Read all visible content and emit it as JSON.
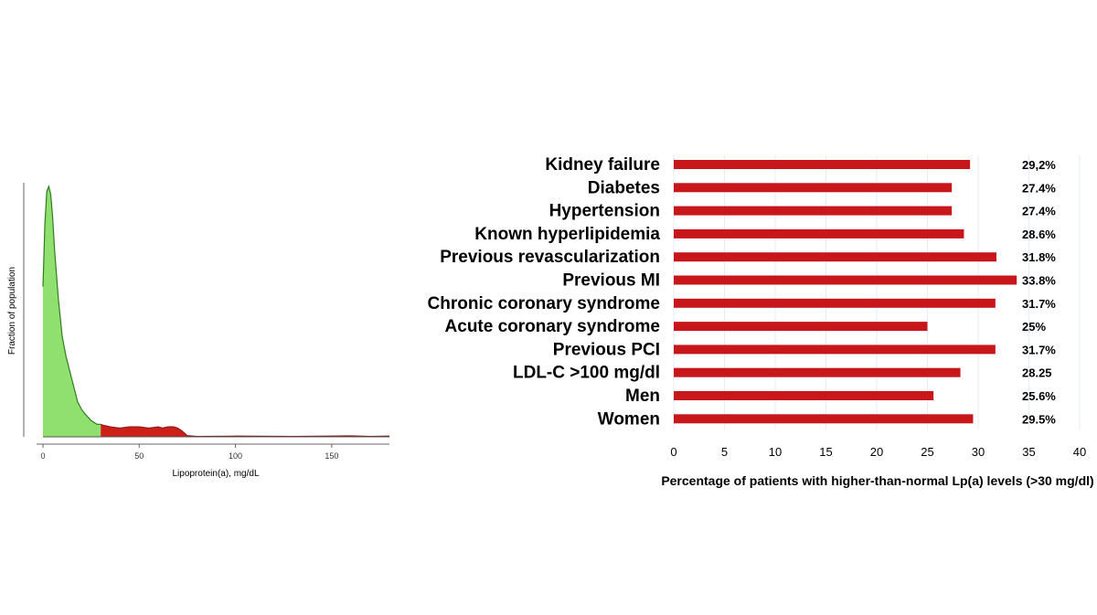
{
  "chart_data": [
    {
      "type": "area",
      "xlabel": "Lipoprotein(a), mg/dL",
      "ylabel": "Fraction of population",
      "xlim": [
        0,
        180
      ],
      "xticks": [
        0,
        50,
        100,
        150
      ],
      "threshold": 30,
      "colors": {
        "below": "#90e070",
        "above": "#cc1f1a",
        "line": "#2e7d1e"
      },
      "x": [
        0,
        1,
        2,
        3,
        4,
        5,
        6,
        8,
        10,
        12,
        15,
        18,
        20,
        22,
        25,
        28,
        30,
        32,
        35,
        40,
        45,
        50,
        55,
        60,
        62,
        65,
        68,
        70,
        72,
        75,
        80,
        100,
        130,
        150,
        160,
        170,
        180
      ],
      "y": [
        0.6,
        0.85,
        0.98,
        1.0,
        0.97,
        0.88,
        0.75,
        0.55,
        0.4,
        0.32,
        0.23,
        0.14,
        0.11,
        0.09,
        0.065,
        0.05,
        0.05,
        0.045,
        0.04,
        0.035,
        0.04,
        0.04,
        0.035,
        0.04,
        0.035,
        0.04,
        0.04,
        0.035,
        0.025,
        0.005,
        0.002,
        0.003,
        0.002,
        0.003,
        0.004,
        0.002,
        0.003
      ]
    },
    {
      "type": "bar",
      "orientation": "horizontal",
      "categories": [
        "Kidney failure",
        "Diabetes",
        "Hypertension",
        "Known hyperlipidemia",
        "Previous revascularization",
        "Previous MI",
        "Chronic coronary syndrome",
        "Acute coronary syndrome",
        "Previous PCI",
        "LDL-C >100 mg/dl",
        "Men",
        "Women"
      ],
      "values": [
        29.2,
        27.4,
        27.4,
        28.6,
        31.8,
        33.8,
        31.7,
        25,
        31.7,
        28.25,
        25.6,
        29.5
      ],
      "value_labels": [
        "29,2%",
        "27.4%",
        "27.4%",
        "28.6%",
        "31.8%",
        "33.8%",
        "31.7%",
        "25%",
        "31.7%",
        "28.25",
        "25.6%",
        "29.5%"
      ],
      "xlim": [
        0,
        40
      ],
      "xticks": [
        "0",
        "5",
        "10",
        "15",
        "20",
        "25",
        "30",
        "35",
        "40"
      ],
      "xlabel": "Percentage of patients with higher-than-normal Lp(a) levels (>30 mg/dl)",
      "bar_color": "#c8171b",
      "grid": true
    }
  ]
}
